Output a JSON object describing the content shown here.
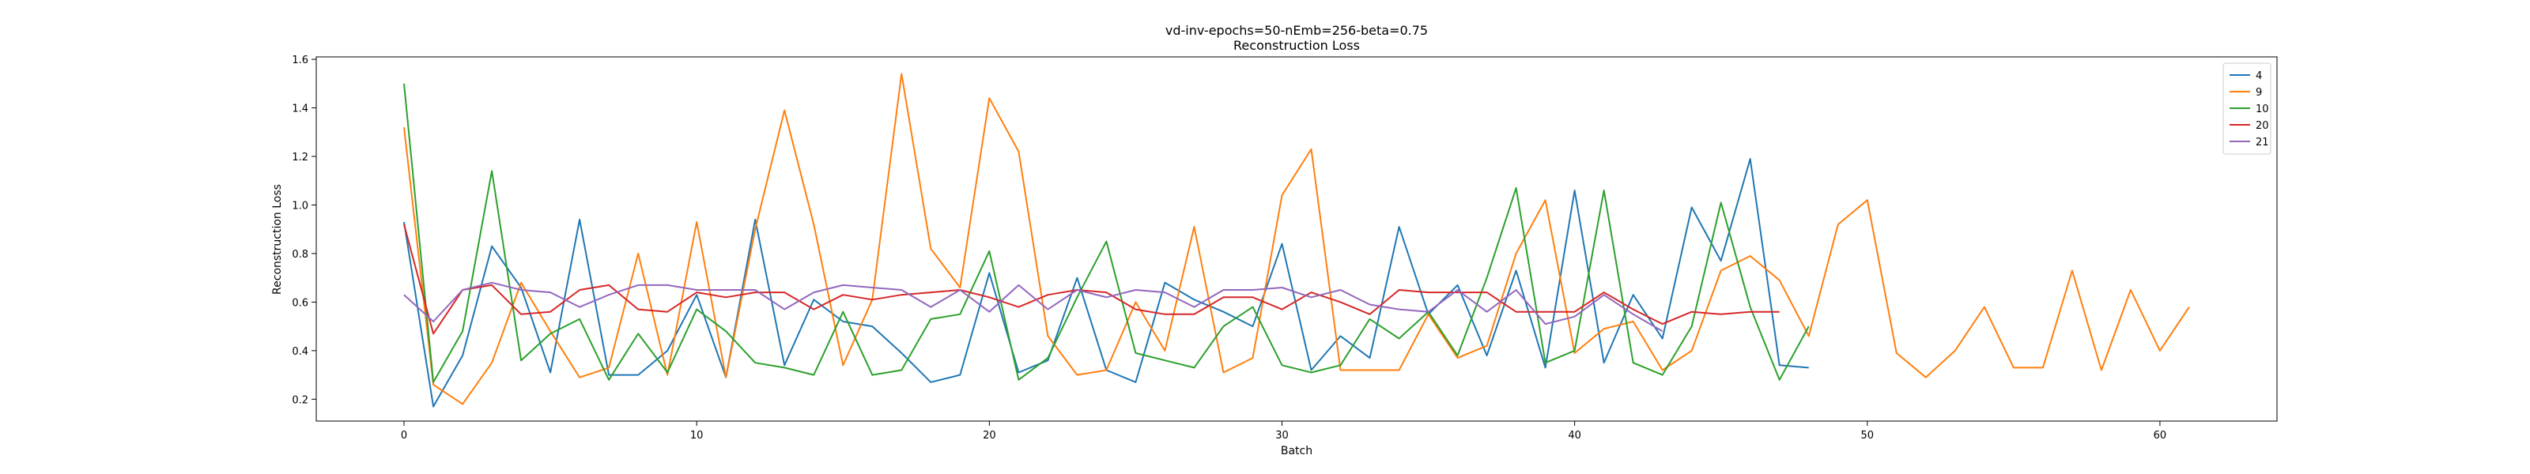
{
  "chart_data": {
    "type": "line",
    "title": "vd-inv-epochs=50-nEmb=256-beta=0.75",
    "subtitle": "Reconstruction Loss",
    "xlabel": "Batch",
    "ylabel": "Reconstruction Loss",
    "xlim": [
      -3,
      64
    ],
    "ylim": [
      0.11,
      1.61
    ],
    "xticks": [
      0,
      10,
      20,
      30,
      40,
      50,
      60
    ],
    "yticks": [
      0.2,
      0.4,
      0.6,
      0.8,
      1.0,
      1.2,
      1.4,
      1.6
    ],
    "grid": false,
    "legend_position": "top-right",
    "series": [
      {
        "name": "4",
        "color": "#1f77b4",
        "values": [
          0.93,
          0.17,
          0.38,
          0.83,
          0.66,
          0.31,
          0.94,
          0.3,
          0.3,
          0.4,
          0.63,
          0.29,
          0.94,
          0.34,
          0.61,
          0.52,
          0.5,
          0.39,
          0.27,
          0.3,
          0.72,
          0.31,
          0.36,
          0.7,
          0.32,
          0.27,
          0.68,
          0.61,
          0.56,
          0.5,
          0.84,
          0.32,
          0.46,
          0.37,
          0.91,
          0.55,
          0.67,
          0.38,
          0.73,
          0.33,
          1.06,
          0.35,
          0.63,
          0.45,
          0.99,
          0.77,
          1.19,
          0.34,
          0.33
        ]
      },
      {
        "name": "9",
        "color": "#ff7f0e",
        "values": [
          1.32,
          0.26,
          0.18,
          0.35,
          0.68,
          0.48,
          0.29,
          0.33,
          0.8,
          0.3,
          0.93,
          0.29,
          0.9,
          1.39,
          0.92,
          0.34,
          0.61,
          1.54,
          0.82,
          0.66,
          1.44,
          1.22,
          0.46,
          0.3,
          0.32,
          0.6,
          0.4,
          0.91,
          0.31,
          0.37,
          1.04,
          1.23,
          0.32,
          0.32,
          0.32,
          0.55,
          0.37,
          0.42,
          0.8,
          1.02,
          0.39,
          0.49,
          0.52,
          0.32,
          0.4,
          0.73,
          0.79,
          0.69,
          0.46,
          0.92,
          1.02,
          0.39,
          0.29,
          0.4,
          0.58,
          0.33,
          0.33,
          0.73,
          0.32,
          0.65,
          0.4,
          0.58
        ]
      },
      {
        "name": "10",
        "color": "#2ca02c",
        "values": [
          1.5,
          0.27,
          0.48,
          1.14,
          0.36,
          0.47,
          0.53,
          0.28,
          0.47,
          0.31,
          0.57,
          0.48,
          0.35,
          0.33,
          0.3,
          0.56,
          0.3,
          0.32,
          0.53,
          0.55,
          0.81,
          0.28,
          0.37,
          0.62,
          0.85,
          0.39,
          0.36,
          0.33,
          0.5,
          0.58,
          0.34,
          0.31,
          0.34,
          0.53,
          0.45,
          0.56,
          0.38,
          0.7,
          1.07,
          0.35,
          0.4,
          1.06,
          0.35,
          0.3,
          0.5,
          1.01,
          0.58,
          0.28,
          0.5
        ]
      },
      {
        "name": "20",
        "color": "#d62728",
        "values": [
          0.92,
          0.47,
          0.65,
          0.67,
          0.55,
          0.56,
          0.65,
          0.67,
          0.57,
          0.56,
          0.64,
          0.62,
          0.64,
          0.64,
          0.57,
          0.63,
          0.61,
          0.63,
          0.64,
          0.65,
          0.62,
          0.58,
          0.63,
          0.65,
          0.64,
          0.57,
          0.55,
          0.55,
          0.62,
          0.62,
          0.57,
          0.64,
          0.6,
          0.55,
          0.65,
          0.64,
          0.64,
          0.64,
          0.56,
          0.56,
          0.56,
          0.64,
          0.57,
          0.51,
          0.56,
          0.55,
          0.56,
          0.56
        ]
      },
      {
        "name": "21",
        "color": "#9467bd",
        "values": [
          0.63,
          0.52,
          0.65,
          0.68,
          0.65,
          0.64,
          0.58,
          0.63,
          0.67,
          0.67,
          0.65,
          0.65,
          0.65,
          0.57,
          0.64,
          0.67,
          0.66,
          0.65,
          0.58,
          0.65,
          0.56,
          0.67,
          0.57,
          0.65,
          0.62,
          0.65,
          0.64,
          0.58,
          0.65,
          0.65,
          0.66,
          0.62,
          0.65,
          0.59,
          0.57,
          0.56,
          0.65,
          0.56,
          0.65,
          0.51,
          0.54,
          0.63,
          0.55,
          0.48
        ]
      }
    ]
  }
}
